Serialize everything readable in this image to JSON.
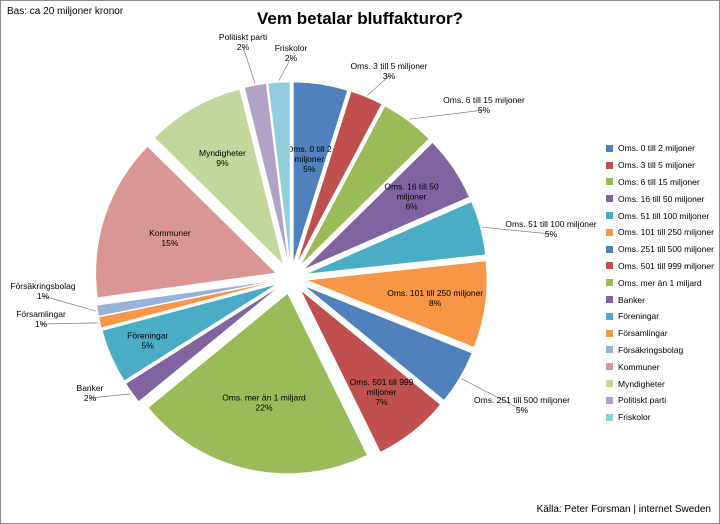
{
  "chart_data": {
    "type": "pie",
    "title": "Vem betalar bluffakturor?",
    "subtitle": "Bas: ca 20 miljoner kronor",
    "source": "Källa: Peter Forsman | internet Sweden",
    "legend_position": "right",
    "exploded": true,
    "slices": [
      {
        "label": "Oms. 0 till 2 miljoner",
        "value": 5,
        "pct_text": "5%",
        "color": "#4f81bd"
      },
      {
        "label": "Oms. 3 till 5 miljoner",
        "value": 3,
        "pct_text": "3%",
        "color": "#c0504d"
      },
      {
        "label": "Oms. 6 till 15 miljoner",
        "value": 5,
        "pct_text": "5%",
        "color": "#9bbb59"
      },
      {
        "label": "Oms. 16 till 50 miljoner",
        "value": 6,
        "pct_text": "6%",
        "color": "#8064a2"
      },
      {
        "label": "Oms. 51 till 100 miljoner",
        "value": 5,
        "pct_text": "5%",
        "color": "#4bacc6"
      },
      {
        "label": "Oms. 101 till 250 miljoner",
        "value": 8,
        "pct_text": "8%",
        "color": "#f79646"
      },
      {
        "label": "Oms. 251 till 500 miljoner",
        "value": 5,
        "pct_text": "5%",
        "color": "#4f81bd"
      },
      {
        "label": "Oms. 501 till 999 miljoner",
        "value": 7,
        "pct_text": "7%",
        "color": "#c0504d"
      },
      {
        "label": "Oms. mer än 1 miljard",
        "value": 22,
        "pct_text": "22%",
        "color": "#9bbb59"
      },
      {
        "label": "Banker",
        "value": 2,
        "pct_text": "2%",
        "color": "#8064a2"
      },
      {
        "label": "Föreningar",
        "value": 5,
        "pct_text": "5%",
        "color": "#4bacc6"
      },
      {
        "label": "Församlingar",
        "value": 1,
        "pct_text": "1%",
        "color": "#f79646"
      },
      {
        "label": "Försäkringsbolag",
        "value": 1,
        "pct_text": "1%",
        "color": "#95b3d7"
      },
      {
        "label": "Kommuner",
        "value": 15,
        "pct_text": "15%",
        "color": "#d99694"
      },
      {
        "label": "Myndigheter",
        "value": 9,
        "pct_text": "9%",
        "color": "#c3d69b"
      },
      {
        "label": "Politiskt parti",
        "value": 2,
        "pct_text": "2%",
        "color": "#b3a2c7"
      },
      {
        "label": "Friskolor",
        "value": 2,
        "pct_text": "2%",
        "color": "#93cddd"
      }
    ]
  }
}
